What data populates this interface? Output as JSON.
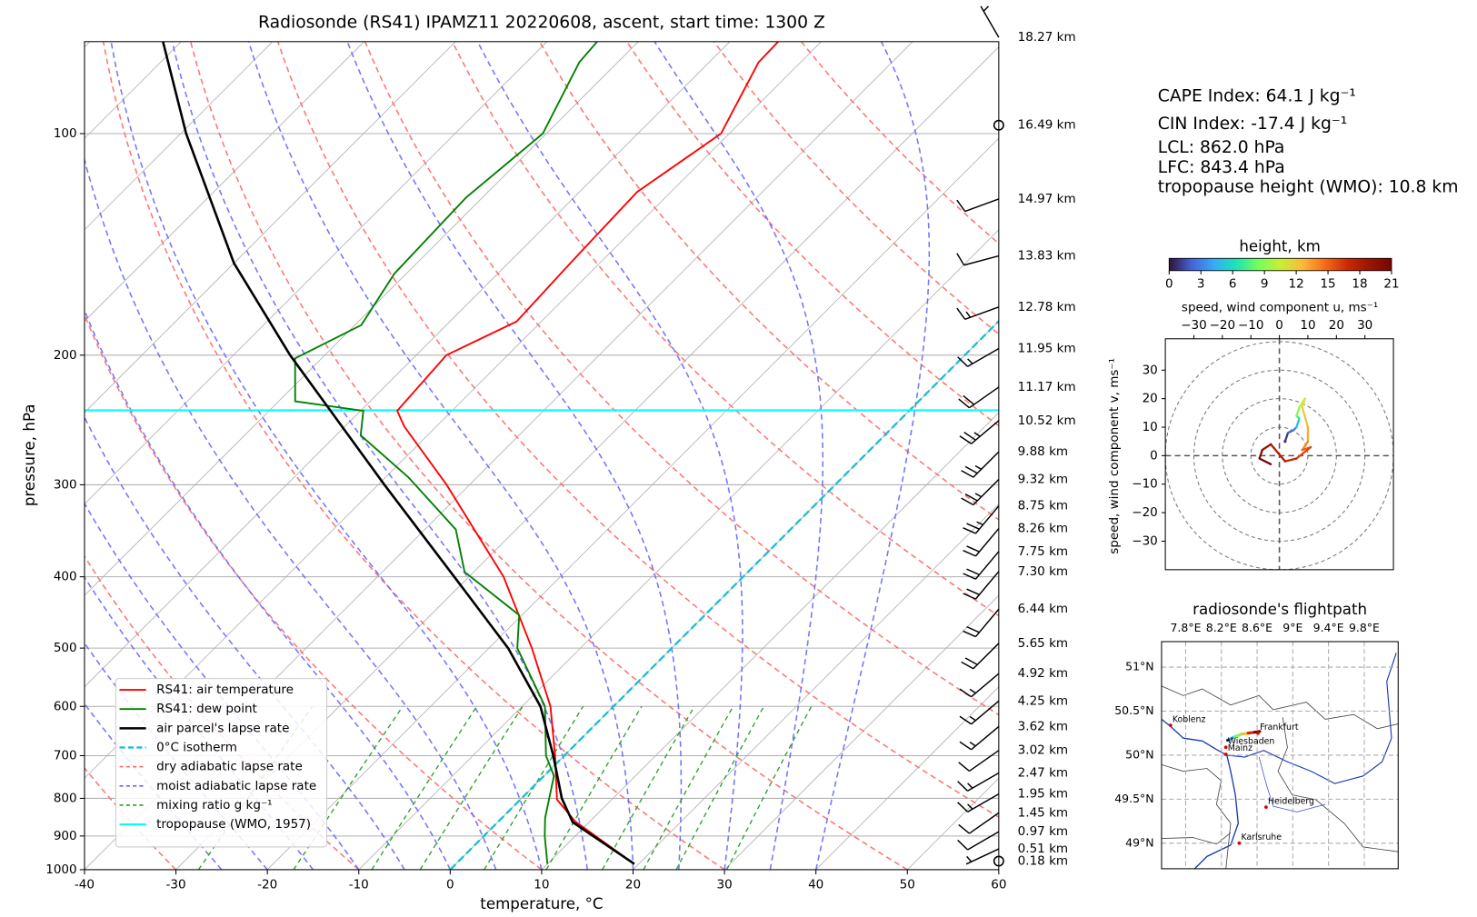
{
  "chart_data": [
    {
      "type": "skewt",
      "title": "Radiosonde (RS41) IPAMZ11 20220608, ascent, start time: 1300 Z",
      "xlabel": "temperature, °C",
      "ylabel": "pressure, hPa",
      "xlim": [
        -40,
        60
      ],
      "ylim": [
        1000,
        75
      ],
      "log_y": true,
      "grid": true,
      "xticks": [
        -40,
        -30,
        -20,
        -10,
        0,
        10,
        20,
        30,
        40,
        50,
        60
      ],
      "yticks": [
        100,
        200,
        300,
        400,
        500,
        600,
        700,
        800,
        900,
        1000
      ],
      "legend": "lower left",
      "series": [
        {
          "name": "RS41: air temperature",
          "color": "#ff0000",
          "pressure": [
            982,
            860,
            803,
            700,
            600,
            500,
            400,
            300,
            250,
            238,
            200,
            180,
            150,
            120,
            100,
            80,
            75
          ],
          "values": [
            19.5,
            8.4,
            4.0,
            -1.0,
            -6.9,
            -15.3,
            -26.2,
            -42.5,
            -53.5,
            -56.0,
            -56.7,
            -52.7,
            -53.2,
            -53.7,
            -50.9,
            -54.6,
            -54.7
          ]
        },
        {
          "name": "RS41: dew point",
          "color": "#008000",
          "pressure": [
            982,
            901,
            850,
            746,
            700,
            600,
            500,
            451,
            394,
            345,
            293,
            257,
            238,
            231,
            202,
            182,
            155,
            122,
            100,
            80,
            75
          ],
          "values": [
            10.0,
            6.7,
            4.7,
            1.1,
            -2.0,
            -7.5,
            -16.9,
            -20.3,
            -31.0,
            -36.6,
            -47.5,
            -57.3,
            -59.7,
            -68.2,
            -72.9,
            -69.3,
            -71.3,
            -71.8,
            -70.4,
            -74.2,
            -74.5
          ]
        },
        {
          "name": "air parcel's lapse rate",
          "color": "#000000",
          "pressure": [
            982,
            862,
            800,
            700,
            600,
            500,
            400,
            300,
            200,
            150,
            100,
            75
          ],
          "values": [
            19.5,
            8.2,
            4.4,
            -1.2,
            -8.0,
            -17.9,
            -31.6,
            -49.3,
            -73.8,
            -90.0,
            -109.4,
            -122
          ]
        }
      ],
      "isotherm": {
        "name": "0°C isotherm",
        "color": "#17becf",
        "value": 0
      },
      "dry_adiabats": {
        "name": "dry adiabatic lapse rate",
        "color": "#ff6666"
      },
      "moist_adiabats": {
        "name": "moist adiabatic lapse rate",
        "color": "#6666ff"
      },
      "mixing_ratio": {
        "name": "mixing ratio g kg⁻¹",
        "color": "#2ca02c"
      },
      "tropopause": {
        "name": "tropopause (WMO, 1957)",
        "color": "#00ffff",
        "value": 237.6
      },
      "levels": {
        "pressure": [
          74.0,
          97.4,
          122.7,
          146.6,
          172,
          195.9,
          221,
          245.4,
          270.6,
          295,
          320.5,
          344,
          369.6,
          393.4,
          442.6,
          492.5,
          541.6,
          590,
          639,
          688.6,
          739,
          789,
          837,
          888,
          937,
          973.6
        ],
        "values": [
          18.27,
          16.49,
          14.97,
          13.83,
          12.78,
          11.95,
          11.17,
          10.52,
          9.88,
          9.32,
          8.75,
          8.26,
          7.75,
          7.3,
          6.44,
          5.65,
          4.92,
          4.25,
          3.62,
          3.02,
          2.47,
          1.95,
          1.45,
          0.97,
          0.51,
          0.18
        ],
        "value_labels": [
          "18.27 km",
          "16.49 km",
          "14.97 km",
          "13.83 km",
          "12.78 km",
          "11.95 km",
          "11.17 km",
          "10.52 km",
          "9.88 km",
          "9.32 km",
          "8.75 km",
          "8.26 km",
          "7.75 km",
          "7.30 km",
          "6.44 km",
          "5.65 km",
          "4.92 km",
          "4.25 km",
          "3.62 km",
          "3.02 km",
          "2.47 km",
          "1.95 km",
          "1.45 km",
          "0.97 km",
          "0.51 km",
          "0.18 km"
        ],
        "wind_speed": [
          5,
          0,
          10,
          10,
          15,
          15,
          20,
          25,
          25,
          25,
          25,
          20,
          20,
          20,
          20,
          20,
          15,
          15,
          15,
          10,
          15,
          15,
          10,
          10,
          5,
          0
        ],
        "wind_direction": [
          330,
          0,
          250,
          255,
          250,
          240,
          235,
          230,
          225,
          225,
          220,
          220,
          220,
          220,
          220,
          225,
          230,
          230,
          230,
          235,
          240,
          240,
          235,
          240,
          245,
          0
        ]
      },
      "annotations": [
        "CAPE Index: 64.1 J kg⁻¹",
        "CIN Index: -17.4 J kg⁻¹",
        "LCL: 862.0 hPa",
        "LFC: 843.4 hPa",
        "tropopause height (WMO): 10.8 km"
      ]
    },
    {
      "type": "hodograph",
      "title": "height, km",
      "xlabel": "speed, wind component u, ms⁻¹",
      "ylabel": "speed, wind component v, ms⁻¹",
      "xlim": [
        -40,
        40
      ],
      "ylim": [
        -40,
        41
      ],
      "xticks": [
        {
          "value": -30,
          "label": "−30"
        },
        {
          "value": -20,
          "label": "−20"
        },
        {
          "value": -10,
          "label": "−10"
        },
        0,
        10,
        20,
        30
      ],
      "yticks": [
        {
          "value": -30,
          "label": "−30"
        },
        {
          "value": -20,
          "label": "−20"
        },
        {
          "value": -10,
          "label": "−10"
        },
        0,
        10,
        20,
        30
      ],
      "colormap": "turbo",
      "clim": [
        0,
        21
      ],
      "cticks": [
        0,
        3,
        6,
        9,
        12,
        15,
        18,
        21
      ],
      "u": [
        2,
        3,
        5,
        6,
        7,
        6,
        7,
        9,
        8,
        10,
        10,
        8,
        11,
        6,
        2,
        -3,
        -6,
        -7,
        -3
      ],
      "v": [
        5,
        8,
        9,
        10,
        13,
        14,
        17,
        20,
        17,
        10,
        5,
        2,
        3,
        -1,
        -2,
        4,
        2,
        -1,
        -3
      ],
      "height": [
        0,
        1,
        2,
        3,
        5,
        7,
        9,
        10,
        11,
        12,
        13,
        14,
        15,
        16,
        17,
        18,
        19,
        20,
        21
      ]
    },
    {
      "type": "map",
      "title": "radiosonde's flightpath",
      "xlim": [
        7.53,
        10.18
      ],
      "ylim": [
        48.71,
        51.29
      ],
      "xticks": [
        {
          "value": 7.8,
          "label": "7.8°E"
        },
        {
          "value": 8.2,
          "label": "8.2°E"
        },
        {
          "value": 8.6,
          "label": "8.6°E"
        },
        {
          "value": 9,
          "label": "9°E"
        },
        {
          "value": 9.4,
          "label": "9.4°E"
        },
        {
          "value": 9.8,
          "label": "9.8°E"
        }
      ],
      "yticks": [
        {
          "value": 51,
          "label": "51°N"
        },
        {
          "value": 50.5,
          "label": "50.5°N"
        },
        {
          "value": 50,
          "label": "50°N"
        },
        {
          "value": 49.5,
          "label": "49.5°N"
        },
        {
          "value": 49,
          "label": "49°N"
        }
      ],
      "cities": [
        {
          "name": "Koblenz",
          "lon": 7.63,
          "lat": 50.34
        },
        {
          "name": "Wiesbaden",
          "lon": 8.25,
          "lat": 50.09
        },
        {
          "name": "Frankfurt",
          "lon": 8.61,
          "lat": 50.25
        },
        {
          "name": "Mainz",
          "lon": 8.25,
          "lat": 50.01
        },
        {
          "name": "Heidelberg",
          "lon": 8.7,
          "lat": 49.41
        },
        {
          "name": "Karlsruhe",
          "lon": 8.4,
          "lat": 49.0
        }
      ],
      "track": {
        "lon": [
          8.27,
          8.35,
          8.43,
          8.5,
          8.57,
          8.63
        ],
        "lat": [
          50.17,
          50.21,
          50.24,
          50.25,
          50.26,
          50.27
        ],
        "height": [
          0,
          4,
          8,
          12,
          16,
          20
        ]
      }
    }
  ]
}
